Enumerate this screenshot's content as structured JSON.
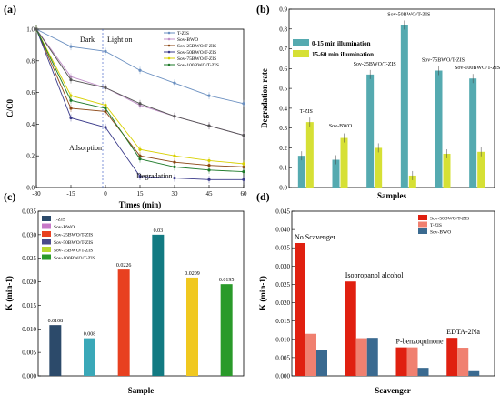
{
  "chart_data": [
    {
      "id": "a",
      "panel_label": "(a)",
      "type": "line",
      "xlabel": "Times (min)",
      "ylabel": "C/C0",
      "xlim": [
        -30,
        60
      ],
      "ylim": [
        0,
        1.0
      ],
      "xticks": [
        -30,
        -15,
        0,
        15,
        30,
        45,
        60
      ],
      "yticks": [
        0.0,
        0.2,
        0.4,
        0.6,
        0.8,
        1.0
      ],
      "x": [
        -30,
        -15,
        0,
        15,
        30,
        45,
        60
      ],
      "series": [
        {
          "name": "T-ZIS",
          "color": "#6a8fc0",
          "marker": "dot",
          "values": [
            1.0,
            0.89,
            0.86,
            0.74,
            0.66,
            0.58,
            0.53
          ]
        },
        {
          "name": "Sov-BWO",
          "color": "#c090c8",
          "marker": "line",
          "values": [
            1.0,
            0.7,
            0.63,
            0.52,
            0.45,
            0.39,
            0.33
          ]
        },
        {
          "name": "Sov-25BWO/T-ZIS",
          "color": "#8b4513",
          "marker": "tri",
          "values": [
            1.0,
            0.5,
            0.48,
            0.2,
            0.16,
            0.14,
            0.13
          ]
        },
        {
          "name": "Sov-50BWO/T-ZIS",
          "color": "#3a3a8a",
          "marker": "star",
          "values": [
            1.0,
            0.44,
            0.38,
            0.07,
            0.06,
            0.05,
            0.05
          ]
        },
        {
          "name": "Sov-75BWO/T-ZIS",
          "color": "#d8d000",
          "marker": "dia",
          "values": [
            1.0,
            0.58,
            0.52,
            0.24,
            0.2,
            0.17,
            0.15
          ]
        },
        {
          "name": "Sov-100BWO/T-ZIS",
          "color": "#1e7a2a",
          "marker": "circ",
          "values": [
            1.0,
            0.55,
            0.5,
            0.18,
            0.13,
            0.11,
            0.1
          ]
        },
        {
          "name": "",
          "color": "#555555",
          "marker": "sq",
          "values": [
            1.0,
            0.68,
            0.63,
            0.53,
            0.45,
            0.39,
            0.33
          ]
        }
      ],
      "annotations": {
        "dark": "Dark",
        "light": "Light on",
        "adsorption": "Adsorption",
        "degradation": "Degradation"
      }
    },
    {
      "id": "b",
      "panel_label": "(b)",
      "type": "bar",
      "xlabel": "Samples",
      "ylabel": "Degradation rate",
      "ylim": [
        0,
        0.9
      ],
      "yticks": [
        0.0,
        0.1,
        0.2,
        0.3,
        0.4,
        0.5,
        0.6,
        0.7,
        0.8,
        0.9
      ],
      "categories": [
        "T-ZIS",
        "Sov-BWO",
        "Sov-25BWO/T-ZIS",
        "Sov-50BWO/T-ZIS",
        "Sov-75BWO/T-ZIS",
        "Sov-100BWO/T-ZIS"
      ],
      "series": [
        {
          "name": "0-15 min illumination",
          "color": "#55aab0",
          "values": [
            0.16,
            0.14,
            0.57,
            0.82,
            0.59,
            0.55
          ]
        },
        {
          "name": "15-60 min illumination",
          "color": "#d6e035",
          "values": [
            0.33,
            0.25,
            0.2,
            0.06,
            0.17,
            0.18
          ]
        }
      ],
      "legend": "top-left"
    },
    {
      "id": "c",
      "panel_label": "(c)",
      "type": "bar",
      "xlabel": "Sample",
      "ylabel": "K (min-1)",
      "ylim": [
        0,
        0.035
      ],
      "yticks": [
        0.0,
        0.005,
        0.01,
        0.015,
        0.02,
        0.025,
        0.03,
        0.035
      ],
      "categories": [
        "T-ZIS",
        "Sov-BWO",
        "Sov-25BWO/T-ZIS",
        "Sov-50BWO/T-ZIS",
        "Sov-75BWO/T-ZIS",
        "Sov-100BWO/T-ZIS"
      ],
      "values": [
        0.0108,
        0.008,
        0.0226,
        0.03,
        0.0209,
        0.0195
      ],
      "value_labels": [
        "0.0108",
        "0.008",
        "0.0226",
        "0.03",
        "0.0209",
        "0.0195"
      ],
      "colors": [
        "#2c4a6a",
        "#3aa8b8",
        "#e84020",
        "#127a82",
        "#f0c820",
        "#2a9a2a"
      ],
      "legend_colors": [
        "#2c4a6a",
        "#c878c8",
        "#e84020",
        "#4a4a8a",
        "#b8d830",
        "#2a9a2a"
      ],
      "legend": "top-left"
    },
    {
      "id": "d",
      "panel_label": "(d)",
      "type": "bar",
      "xlabel": "Scavenger",
      "ylabel": "K (min-1)",
      "ylim": [
        0,
        0.045
      ],
      "yticks": [
        0.0,
        0.005,
        0.01,
        0.015,
        0.02,
        0.025,
        0.03,
        0.035,
        0.04,
        0.045
      ],
      "categories": [
        "No Scavenger",
        "Isopropanol alcohol",
        "P-benzoquinone",
        "EDTA-2Na"
      ],
      "series": [
        {
          "name": "Sov-50BWO/T-ZIS",
          "color": "#e02010",
          "values": [
            0.0363,
            0.0258,
            0.0078,
            0.0104
          ]
        },
        {
          "name": "T-ZIS",
          "color": "#f08070",
          "values": [
            0.0115,
            0.0103,
            0.0078,
            0.0077
          ]
        },
        {
          "name": "Sov-BWO",
          "color": "#3a6a90",
          "values": [
            0.0072,
            0.0104,
            0.0022,
            0.0013
          ]
        }
      ],
      "legend": "top-right"
    }
  ]
}
